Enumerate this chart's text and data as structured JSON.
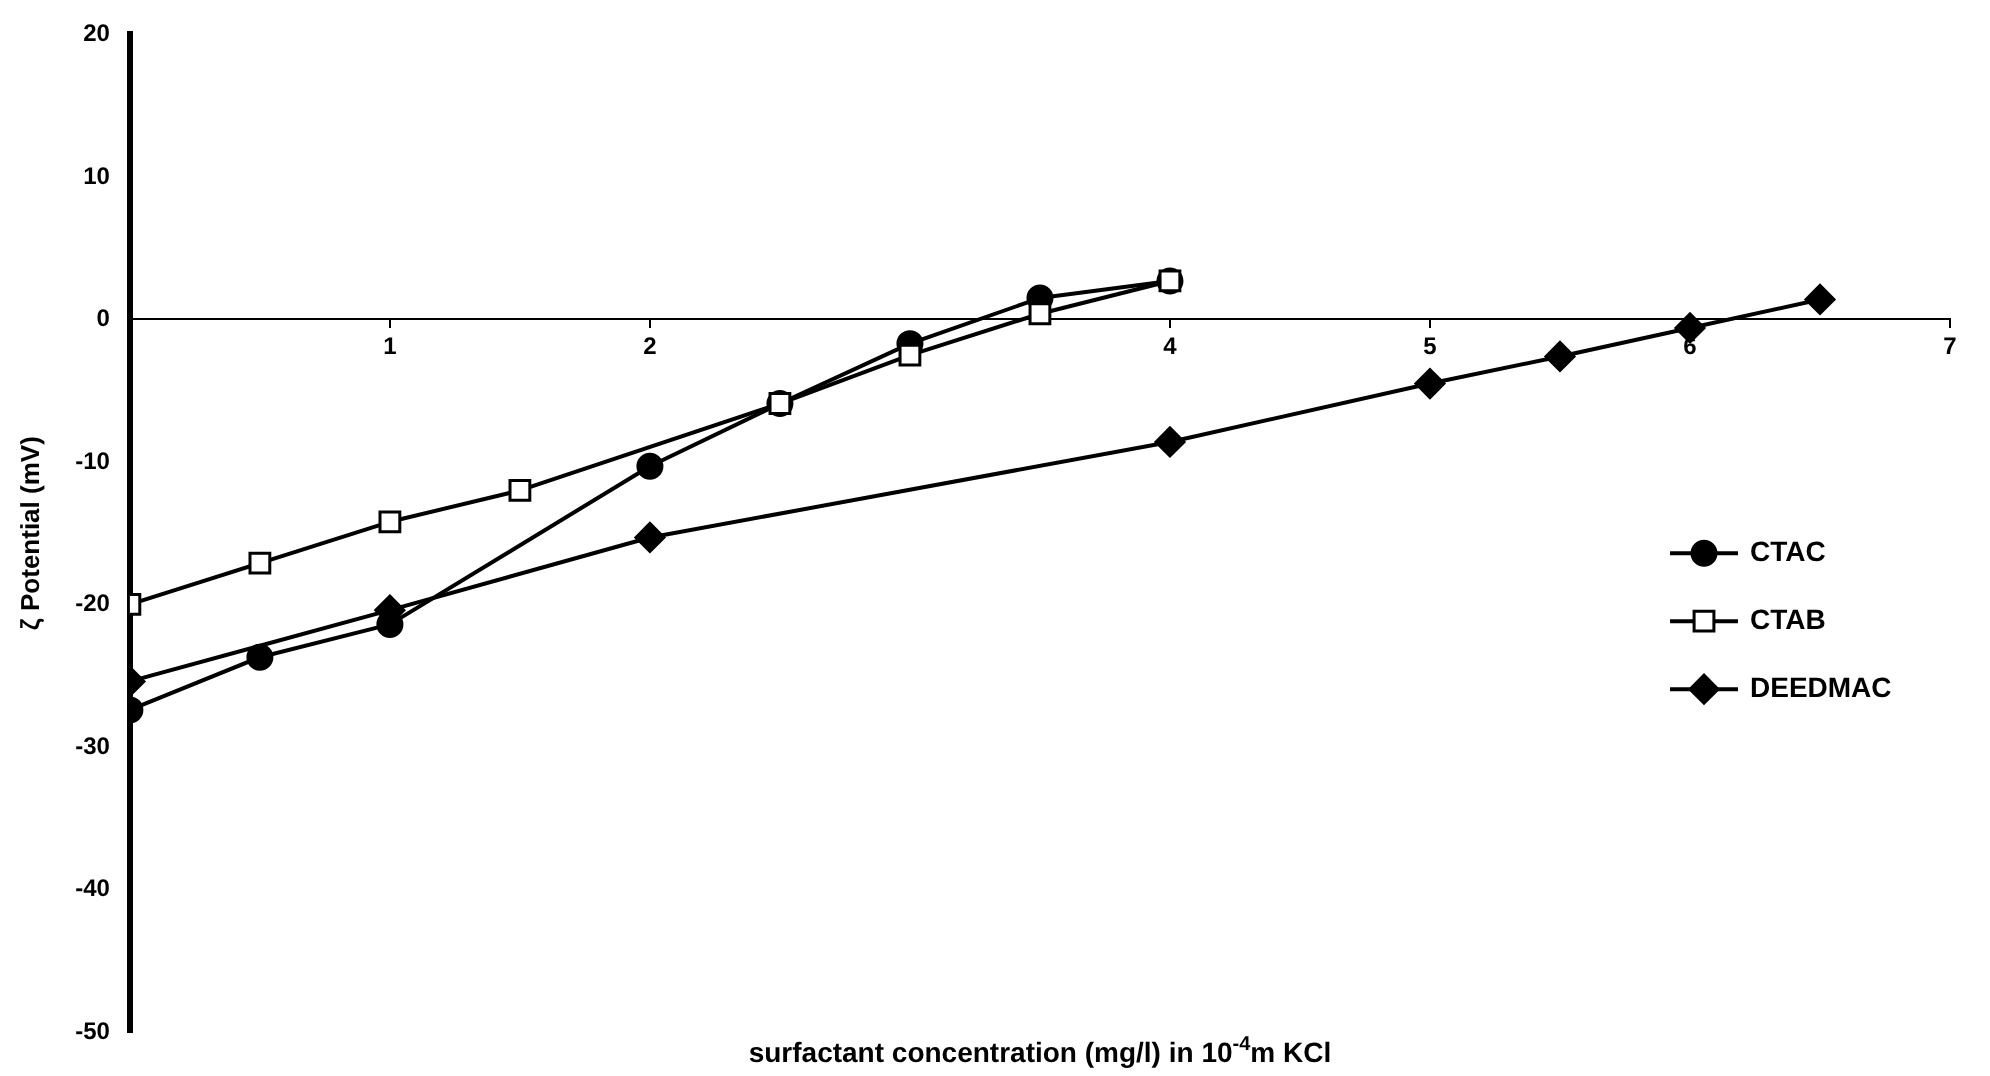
{
  "chart_data": {
    "type": "line",
    "xlabel": "surfactant concentration (mg/l) in 10$^{-4}$m KCl",
    "ylabel": "ζ Potential (mV)",
    "xlim": [
      0,
      7
    ],
    "xticks": [
      1,
      2,
      4,
      5,
      6,
      7
    ],
    "ylim": [
      -50,
      20
    ],
    "yticks": [
      -50,
      -40,
      -30,
      -20,
      -10,
      0,
      10,
      20
    ],
    "grid": false,
    "legend": "right",
    "line_style": "solid",
    "series": [
      {
        "name": "CTAC",
        "color": "#000000",
        "marker": "circle",
        "x": [
          0,
          0.5,
          1,
          2,
          2.5,
          3,
          3.5,
          4
        ],
        "values": [
          -27.4,
          -23.7,
          -21.4,
          -10.3,
          -5.9,
          -1.7,
          1.5,
          2.7
        ]
      },
      {
        "name": "CTAB",
        "color": "#000000",
        "marker": "square",
        "x": [
          0,
          0.5,
          1,
          1.5,
          2.5,
          3,
          3.5,
          4
        ],
        "values": [
          -20,
          -17.1,
          -14.2,
          -12,
          -5.9,
          -2.5,
          0.4,
          2.7
        ]
      },
      {
        "name": "DEEDMAC",
        "color": "#000000",
        "marker": "diamond",
        "x": [
          0,
          1,
          2,
          4,
          5,
          5.5,
          6,
          6.5
        ],
        "values": [
          -25.4,
          -20.4,
          -15.3,
          -8.6,
          -4.5,
          -2.6,
          -0.6,
          1.4
        ]
      }
    ]
  }
}
